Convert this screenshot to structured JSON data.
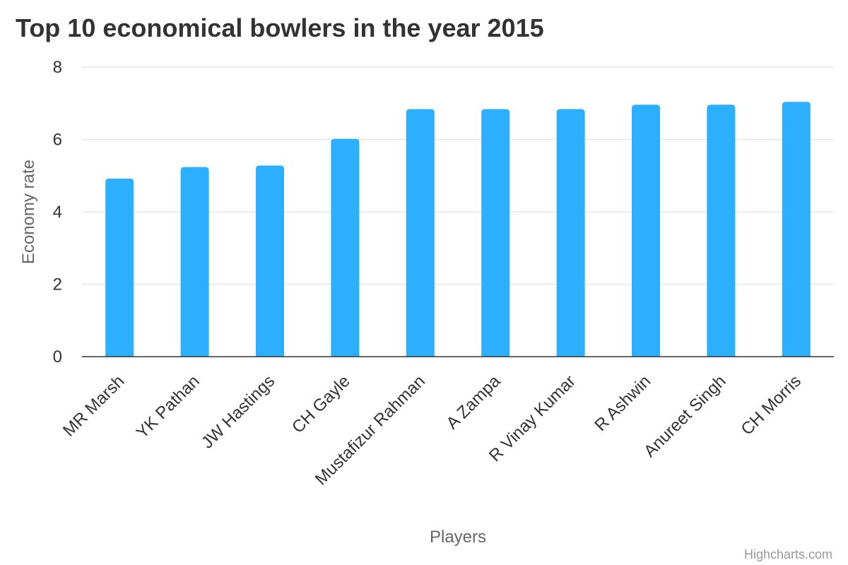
{
  "chart_data": {
    "type": "bar",
    "title": "Top 10 economical bowlers in the year 2015",
    "xlabel": "Players",
    "ylabel": "Economy rate",
    "categories": [
      "MR Marsh",
      "YK Pathan",
      "JW Hastings",
      "CH Gayle",
      "Mustafizur Rahman",
      "A Zampa",
      "R Vinay Kumar",
      "R Ashwin",
      "Anureet Singh",
      "CH Morris"
    ],
    "values": [
      4.92,
      5.24,
      5.28,
      6.02,
      6.84,
      6.84,
      6.84,
      6.96,
      6.96,
      7.04
    ],
    "ylim": [
      0,
      8
    ],
    "yticks": [
      "0",
      "2",
      "4",
      "6",
      "8"
    ],
    "grid": true,
    "legend": "none",
    "bar_color": "#2caffe"
  },
  "credits": "Highcharts.com"
}
